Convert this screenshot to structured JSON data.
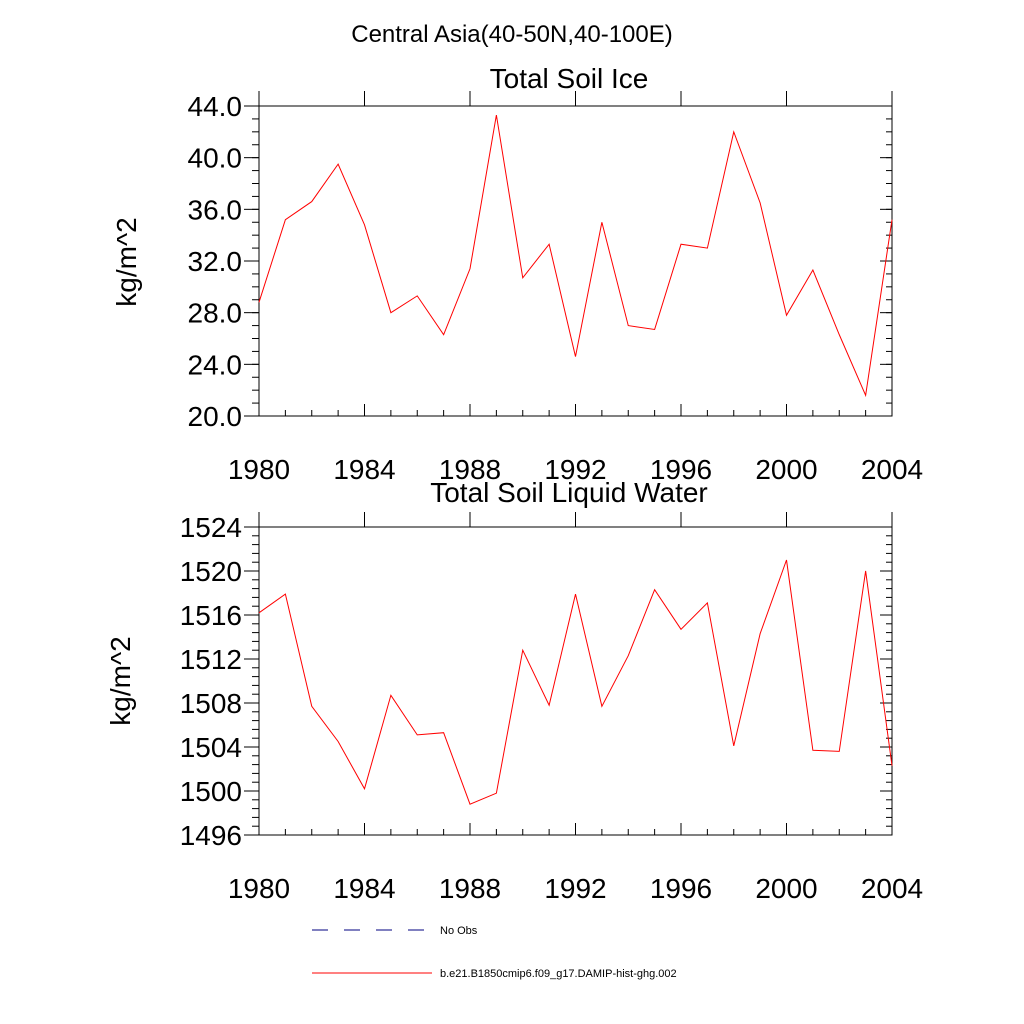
{
  "figure": {
    "title": "Central Asia(40-50N,40-100E)"
  },
  "legend": {
    "placement": "bottom",
    "items": [
      {
        "label": "No Obs",
        "style": "dashed",
        "color": "#000080"
      },
      {
        "label": "b.e21.B1850cmip6.f09_g17.DAMIP-hist-ghg.002",
        "style": "solid",
        "color": "#ff0000"
      }
    ]
  },
  "chart_data": [
    {
      "type": "line",
      "title": "Total Soil Ice",
      "xlabel": "",
      "ylabel": "kg/m^2",
      "xlim": [
        1980,
        2004
      ],
      "ylim": [
        20.0,
        44.0
      ],
      "xticks": [
        "1980",
        "1984",
        "1988",
        "1992",
        "1996",
        "2000",
        "2004"
      ],
      "yticks": [
        "20.0",
        "24.0",
        "28.0",
        "32.0",
        "36.0",
        "40.0",
        "44.0"
      ],
      "grid": false,
      "x": [
        1980,
        1981,
        1982,
        1983,
        1984,
        1985,
        1986,
        1987,
        1988,
        1989,
        1990,
        1991,
        1992,
        1993,
        1994,
        1995,
        1996,
        1997,
        1998,
        1999,
        2000,
        2001,
        2002,
        2003,
        2004
      ],
      "series": [
        {
          "name": "b.e21.B1850cmip6.f09_g17.DAMIP-hist-ghg.002",
          "color": "#ff0000",
          "values": [
            28.8,
            35.2,
            36.6,
            39.5,
            34.8,
            28.0,
            29.3,
            26.3,
            31.4,
            43.3,
            30.7,
            33.3,
            24.6,
            35.0,
            27.0,
            26.7,
            33.3,
            33.0,
            42.0,
            36.5,
            27.8,
            31.3,
            26.3,
            21.6,
            35.2
          ]
        }
      ]
    },
    {
      "type": "line",
      "title": "Total Soil Liquid Water",
      "xlabel": "",
      "ylabel": "kg/m^2",
      "xlim": [
        1980,
        2004
      ],
      "ylim": [
        1496,
        1524
      ],
      "xticks": [
        "1980",
        "1984",
        "1988",
        "1992",
        "1996",
        "2000",
        "2004"
      ],
      "yticks": [
        "1496",
        "1500",
        "1504",
        "1508",
        "1512",
        "1516",
        "1520",
        "1524"
      ],
      "grid": false,
      "x": [
        1980,
        1981,
        1982,
        1983,
        1984,
        1985,
        1986,
        1987,
        1988,
        1989,
        1990,
        1991,
        1992,
        1993,
        1994,
        1995,
        1996,
        1997,
        1998,
        1999,
        2000,
        2001,
        2002,
        2003,
        2004
      ],
      "series": [
        {
          "name": "b.e21.B1850cmip6.f09_g17.DAMIP-hist-ghg.002",
          "color": "#ff0000",
          "values": [
            1516.2,
            1517.9,
            1507.7,
            1504.5,
            1500.2,
            1508.7,
            1505.1,
            1505.3,
            1498.8,
            1499.8,
            1512.8,
            1507.8,
            1517.9,
            1507.7,
            1512.3,
            1518.3,
            1514.7,
            1517.1,
            1504.1,
            1514.3,
            1521.0,
            1503.7,
            1503.6,
            1520.0,
            1502.3
          ]
        }
      ]
    }
  ]
}
